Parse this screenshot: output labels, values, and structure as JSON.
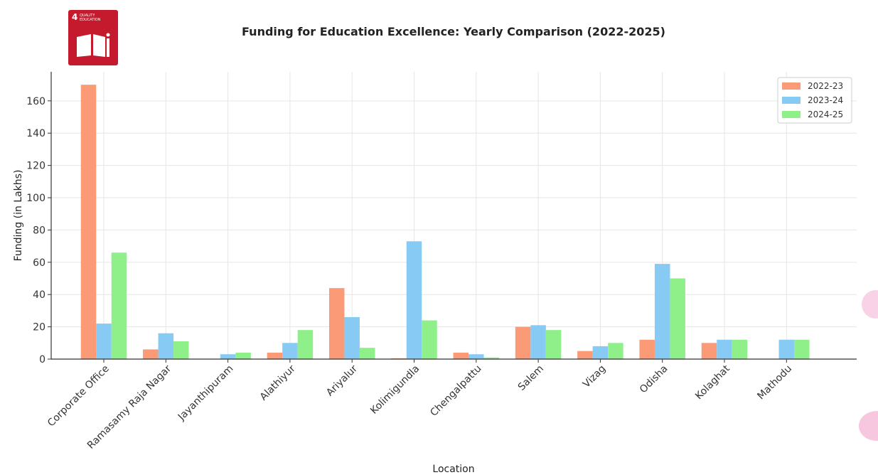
{
  "logo": {
    "number": "4",
    "label": "QUALITY EDUCATION"
  },
  "chart_data": {
    "type": "bar",
    "title": "Funding for Education Excellence: Yearly Comparison (2022-2025)",
    "xlabel": "Location",
    "ylabel": "Funding (in Lakhs)",
    "ylim": [
      0,
      178
    ],
    "yticks": [
      0,
      20,
      40,
      60,
      80,
      100,
      120,
      140,
      160
    ],
    "grid": true,
    "legend_position": "top-right",
    "categories": [
      "Corporate Office",
      "Ramasamy Raja Nagar",
      "Jayanthipuram",
      "Alathiyur",
      "Ariyalur",
      "Kolimigundla",
      "Chengalpattu",
      "Salem",
      "Vizag",
      "Odisha",
      "Kolaghat",
      "Mathodu"
    ],
    "series": [
      {
        "name": "2022-23",
        "color": "#fa9a76",
        "values": [
          170,
          6,
          0,
          4,
          44,
          0.5,
          4,
          20,
          5,
          12,
          10,
          0
        ]
      },
      {
        "name": "2023-24",
        "color": "#87cbf4",
        "values": [
          22,
          16,
          3,
          10,
          26,
          73,
          3,
          21,
          8,
          59,
          12,
          12
        ]
      },
      {
        "name": "2024-25",
        "color": "#8ff08a",
        "values": [
          66,
          11,
          4,
          18,
          7,
          24,
          1,
          18,
          10,
          50,
          12,
          12
        ]
      }
    ]
  }
}
